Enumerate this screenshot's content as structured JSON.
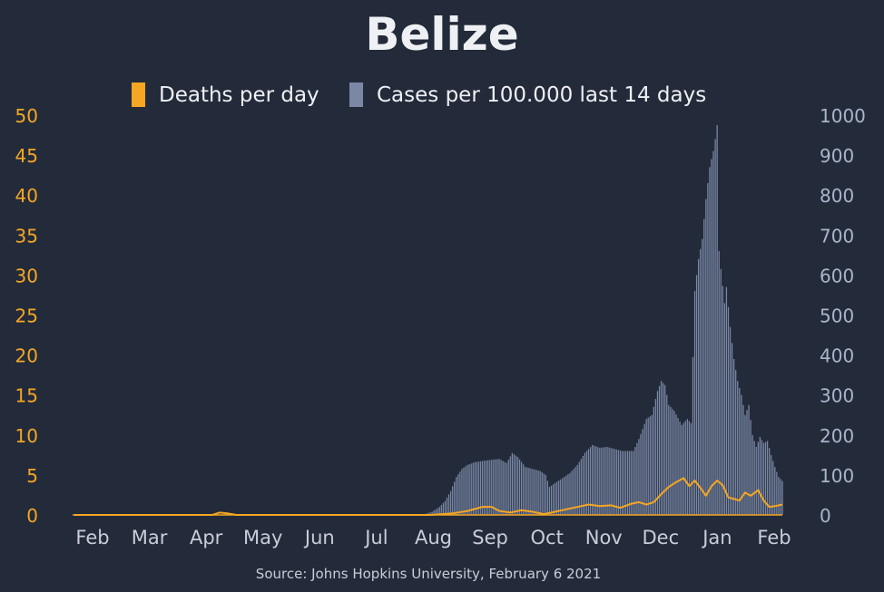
{
  "chart_data": {
    "type": "bar",
    "title": "Belize",
    "source": "Source: Johns Hopkins University, February 6 2021",
    "legend": {
      "position": "top-center",
      "items": [
        {
          "label": "Deaths per day",
          "color": "#f5a623"
        },
        {
          "label": "Cases per 100.000 last 14 days",
          "color": "#7a88a6"
        }
      ]
    },
    "x_tick_labels": [
      "Feb",
      "Mar",
      "Apr",
      "May",
      "Jun",
      "Jul",
      "Aug",
      "Sep",
      "Oct",
      "Nov",
      "Dec",
      "Jan",
      "Feb"
    ],
    "x_range": [
      "2020-01-22",
      "2021-02-05"
    ],
    "y_left": {
      "range": [
        0,
        50
      ],
      "ticks": [
        "0",
        "5",
        "10",
        "15",
        "20",
        "25",
        "30",
        "35",
        "40",
        "45",
        "50"
      ],
      "color": "#f5a623"
    },
    "y_right": {
      "range": [
        0,
        1000
      ],
      "ticks": [
        "0",
        "100",
        "200",
        "300",
        "400",
        "500",
        "600",
        "700",
        "800",
        "900",
        "1000"
      ],
      "color": "#aab5cc"
    },
    "grid": false,
    "series": [
      {
        "name": "Cases per 100.000 last 14 days",
        "kind": "bar",
        "axis": "right",
        "color": "#7a88a6",
        "points": [
          [
            "2020-07-28",
            2
          ],
          [
            "2020-08-01",
            8
          ],
          [
            "2020-08-05",
            20
          ],
          [
            "2020-08-08",
            35
          ],
          [
            "2020-08-11",
            60
          ],
          [
            "2020-08-14",
            95
          ],
          [
            "2020-08-17",
            115
          ],
          [
            "2020-08-20",
            125
          ],
          [
            "2020-08-24",
            132
          ],
          [
            "2020-08-28",
            135
          ],
          [
            "2020-09-02",
            138
          ],
          [
            "2020-09-06",
            140
          ],
          [
            "2020-09-10",
            130
          ],
          [
            "2020-09-13",
            155
          ],
          [
            "2020-09-16",
            145
          ],
          [
            "2020-09-20",
            120
          ],
          [
            "2020-09-24",
            115
          ],
          [
            "2020-09-28",
            110
          ],
          [
            "2020-10-01",
            100
          ],
          [
            "2020-10-03",
            70
          ],
          [
            "2020-10-06",
            80
          ],
          [
            "2020-10-10",
            92
          ],
          [
            "2020-10-14",
            105
          ],
          [
            "2020-10-18",
            125
          ],
          [
            "2020-10-22",
            155
          ],
          [
            "2020-10-26",
            175
          ],
          [
            "2020-10-30",
            168
          ],
          [
            "2020-11-03",
            170
          ],
          [
            "2020-11-07",
            165
          ],
          [
            "2020-11-11",
            160
          ],
          [
            "2020-11-14",
            160
          ],
          [
            "2020-11-17",
            160
          ],
          [
            "2020-11-20",
            190
          ],
          [
            "2020-11-24",
            240
          ],
          [
            "2020-11-27",
            250
          ],
          [
            "2020-11-30",
            310
          ],
          [
            "2020-12-02",
            335
          ],
          [
            "2020-12-04",
            325
          ],
          [
            "2020-12-06",
            275
          ],
          [
            "2020-12-09",
            260
          ],
          [
            "2020-12-13",
            225
          ],
          [
            "2020-12-16",
            240
          ],
          [
            "2020-12-18",
            230
          ],
          [
            "2020-12-20",
            560
          ],
          [
            "2020-12-22",
            640
          ],
          [
            "2020-12-24",
            690
          ],
          [
            "2020-12-26",
            790
          ],
          [
            "2020-12-28",
            870
          ],
          [
            "2020-12-30",
            910
          ],
          [
            "2020-12-31",
            940
          ],
          [
            "2021-01-01",
            975
          ],
          [
            "2021-01-02",
            660
          ],
          [
            "2021-01-03",
            615
          ],
          [
            "2021-01-05",
            530
          ],
          [
            "2021-01-06",
            570
          ],
          [
            "2021-01-08",
            470
          ],
          [
            "2021-01-10",
            390
          ],
          [
            "2021-01-12",
            335
          ],
          [
            "2021-01-14",
            300
          ],
          [
            "2021-01-16",
            250
          ],
          [
            "2021-01-18",
            275
          ],
          [
            "2021-01-20",
            200
          ],
          [
            "2021-01-22",
            170
          ],
          [
            "2021-01-24",
            195
          ],
          [
            "2021-01-26",
            180
          ],
          [
            "2021-01-28",
            185
          ],
          [
            "2021-01-30",
            150
          ],
          [
            "2021-02-01",
            120
          ],
          [
            "2021-02-03",
            95
          ],
          [
            "2021-02-05",
            85
          ]
        ]
      },
      {
        "name": "Deaths per day",
        "kind": "line",
        "axis": "left",
        "color": "#f5a623",
        "points": [
          [
            "2020-01-22",
            0
          ],
          [
            "2020-04-05",
            0
          ],
          [
            "2020-04-09",
            0.3
          ],
          [
            "2020-04-13",
            0.2
          ],
          [
            "2020-04-18",
            0
          ],
          [
            "2020-07-01",
            0
          ],
          [
            "2020-07-31",
            0
          ],
          [
            "2020-08-12",
            0.2
          ],
          [
            "2020-08-20",
            0.5
          ],
          [
            "2020-08-28",
            1.0
          ],
          [
            "2020-09-02",
            1.0
          ],
          [
            "2020-09-06",
            0.5
          ],
          [
            "2020-09-12",
            0.3
          ],
          [
            "2020-09-18",
            0.6
          ],
          [
            "2020-09-24",
            0.4
          ],
          [
            "2020-09-30",
            0.1
          ],
          [
            "2020-10-06",
            0.4
          ],
          [
            "2020-10-12",
            0.7
          ],
          [
            "2020-10-18",
            1.0
          ],
          [
            "2020-10-24",
            1.3
          ],
          [
            "2020-10-30",
            1.1
          ],
          [
            "2020-11-05",
            1.2
          ],
          [
            "2020-11-10",
            0.9
          ],
          [
            "2020-11-16",
            1.4
          ],
          [
            "2020-11-20",
            1.6
          ],
          [
            "2020-11-24",
            1.3
          ],
          [
            "2020-11-28",
            1.6
          ],
          [
            "2020-12-02",
            2.6
          ],
          [
            "2020-12-06",
            3.5
          ],
          [
            "2020-12-10",
            4.1
          ],
          [
            "2020-12-14",
            4.6
          ],
          [
            "2020-12-17",
            3.6
          ],
          [
            "2020-12-20",
            4.3
          ],
          [
            "2020-12-23",
            3.4
          ],
          [
            "2020-12-26",
            2.4
          ],
          [
            "2020-12-29",
            3.6
          ],
          [
            "2021-01-01",
            4.3
          ],
          [
            "2021-01-04",
            3.7
          ],
          [
            "2021-01-07",
            2.2
          ],
          [
            "2021-01-10",
            2.0
          ],
          [
            "2021-01-13",
            1.8
          ],
          [
            "2021-01-16",
            2.8
          ],
          [
            "2021-01-19",
            2.4
          ],
          [
            "2021-01-23",
            3.1
          ],
          [
            "2021-01-26",
            1.8
          ],
          [
            "2021-01-29",
            1.0
          ],
          [
            "2021-02-01",
            1.1
          ],
          [
            "2021-02-05",
            1.3
          ]
        ]
      }
    ]
  }
}
